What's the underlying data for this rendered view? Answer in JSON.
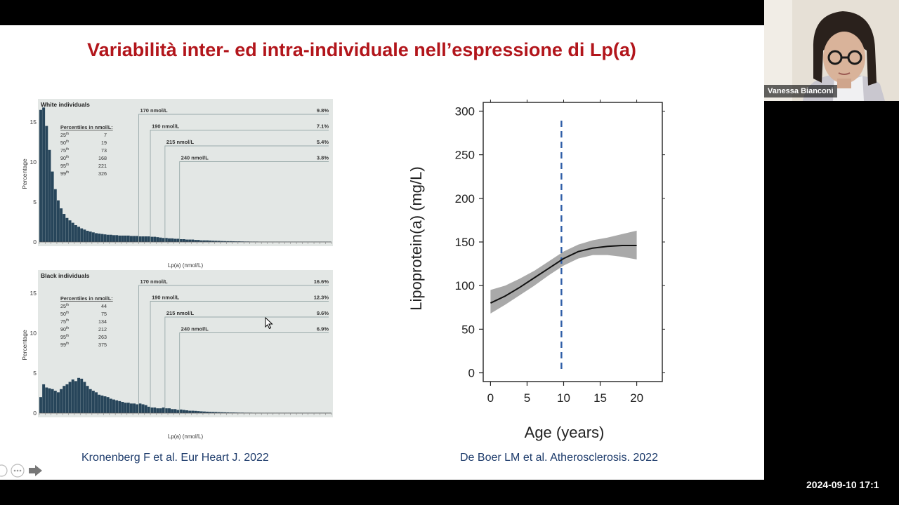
{
  "slide": {
    "title": "Variabilità inter- ed intra-individuale nell’espressione di Lp(a)",
    "citation_left": "Kronenberg F et al. Eur Heart J. 2022",
    "citation_right": "De Boer LM et al. Atherosclerosis. 2022"
  },
  "participant": {
    "name": "Vanessa Bianconi"
  },
  "timestamp": "2024-09-10 17:1",
  "colors": {
    "title": "#b2151b",
    "bars": "#27455a",
    "panel_bg": "#e3e7e5",
    "dash": "#2f5ea8",
    "band": "#9a9a9a"
  },
  "chart_data": [
    {
      "type": "bar",
      "title": "White individuals",
      "ylabel": "Percentage",
      "xlabel": "Lp(a) (nmol/L)",
      "yticks": [
        "15",
        "10",
        "5",
        "0"
      ],
      "ylim": [
        0,
        17
      ],
      "percentiles_header": "Percentiles in nmol/L:",
      "percentiles": [
        {
          "p": "25th",
          "v": "7"
        },
        {
          "p": "50th",
          "v": "19"
        },
        {
          "p": "75th",
          "v": "73"
        },
        {
          "p": "90th",
          "v": "168"
        },
        {
          "p": "95th",
          "v": "221"
        },
        {
          "p": "99th",
          "v": "326"
        }
      ],
      "thresholds": [
        {
          "label": "170 nmol/L",
          "pct": "9.8%",
          "value": 170
        },
        {
          "label": "190 nmol/L",
          "pct": "7.1%",
          "value": 190
        },
        {
          "label": "215 nmol/L",
          "pct": "5.4%",
          "value": 215
        },
        {
          "label": "240 nmol/L",
          "pct": "3.8%",
          "value": 240
        }
      ],
      "values": [
        16.5,
        16.8,
        14.5,
        11.5,
        8.8,
        6.6,
        5.2,
        4.2,
        3.5,
        3.0,
        2.7,
        2.4,
        2.1,
        1.9,
        1.7,
        1.55,
        1.4,
        1.3,
        1.2,
        1.1,
        1.05,
        1.0,
        0.95,
        0.9,
        0.9,
        0.85,
        0.85,
        0.8,
        0.8,
        0.8,
        0.8,
        0.75,
        0.75,
        0.75,
        0.7,
        0.7,
        0.7,
        0.7,
        0.65,
        0.65,
        0.6,
        0.55,
        0.5,
        0.5,
        0.45,
        0.45,
        0.4,
        0.4,
        0.35,
        0.35,
        0.3,
        0.3,
        0.3,
        0.25,
        0.25,
        0.2,
        0.2,
        0.2,
        0.18,
        0.16,
        0.15,
        0.14,
        0.12,
        0.11,
        0.1,
        0.1,
        0.09,
        0.08,
        0.08,
        0.07,
        0.06,
        0.06,
        0.05,
        0.05,
        0.05,
        0.04,
        0.04,
        0.04,
        0.03,
        0.03,
        0.03,
        0.03,
        0.02,
        0.02,
        0.02,
        0.02,
        0.02,
        0.02,
        0.01,
        0.01,
        0.01,
        0.01,
        0.01,
        0.01,
        0.01,
        0.01,
        0.01,
        0.01,
        0.01,
        0.01
      ]
    },
    {
      "type": "bar",
      "title": "Black individuals",
      "ylabel": "Percentage",
      "xlabel": "Lp(a) (nmol/L)",
      "yticks": [
        "15",
        "10",
        "5",
        "0"
      ],
      "ylim": [
        0,
        17
      ],
      "percentiles_header": "Percentiles in nmol/L:",
      "percentiles": [
        {
          "p": "25th",
          "v": "44"
        },
        {
          "p": "50th",
          "v": "75"
        },
        {
          "p": "75th",
          "v": "134"
        },
        {
          "p": "90th",
          "v": "212"
        },
        {
          "p": "95th",
          "v": "263"
        },
        {
          "p": "99th",
          "v": "375"
        }
      ],
      "thresholds": [
        {
          "label": "170 nmol/L",
          "pct": "16.6%",
          "value": 170
        },
        {
          "label": "190 nmol/L",
          "pct": "12.3%",
          "value": 190
        },
        {
          "label": "215 nmol/L",
          "pct": "9.6%",
          "value": 215
        },
        {
          "label": "240 nmol/L",
          "pct": "6.9%",
          "value": 240
        }
      ],
      "values": [
        2.0,
        3.6,
        3.2,
        3.1,
        3.0,
        2.8,
        2.6,
        3.0,
        3.4,
        3.6,
        3.9,
        4.2,
        4.0,
        4.4,
        4.3,
        3.9,
        3.4,
        3.0,
        2.8,
        2.6,
        2.3,
        2.2,
        2.1,
        2.0,
        1.8,
        1.7,
        1.6,
        1.5,
        1.4,
        1.3,
        1.3,
        1.2,
        1.2,
        1.1,
        1.2,
        1.1,
        1.0,
        0.8,
        0.7,
        0.7,
        0.6,
        0.6,
        0.7,
        0.6,
        0.6,
        0.5,
        0.5,
        0.4,
        0.45,
        0.4,
        0.35,
        0.3,
        0.3,
        0.28,
        0.25,
        0.22,
        0.2,
        0.18,
        0.16,
        0.15,
        0.14,
        0.12,
        0.11,
        0.1,
        0.09,
        0.08,
        0.08,
        0.07,
        0.06,
        0.06,
        0.05,
        0.05,
        0.05,
        0.04,
        0.04,
        0.04,
        0.03,
        0.03,
        0.03,
        0.03,
        0.02,
        0.02,
        0.02,
        0.02,
        0.02,
        0.02,
        0.02,
        0.01,
        0.01,
        0.01,
        0.01,
        0.01,
        0.01,
        0.01,
        0.01,
        0.01,
        0.01,
        0.01,
        0.01,
        0.01
      ]
    },
    {
      "type": "line",
      "xlabel": "Age (years)",
      "ylabel": "Lipoprotein(a) (mg/L)",
      "xlim": [
        -1,
        23.5
      ],
      "ylim": [
        -10,
        310
      ],
      "xticks": [
        0,
        5,
        10,
        15,
        20
      ],
      "yticks": [
        0,
        50,
        100,
        150,
        200,
        250,
        300
      ],
      "x": [
        0,
        2,
        4,
        6,
        8,
        10,
        12,
        14,
        16,
        18,
        20
      ],
      "y": [
        80,
        88,
        98,
        109,
        120,
        131,
        139,
        143,
        145,
        146,
        146
      ],
      "ci_lower": [
        68,
        78,
        89,
        100,
        112,
        123,
        131,
        135,
        135,
        133,
        130
      ],
      "ci_upper": [
        95,
        100,
        108,
        117,
        128,
        139,
        147,
        152,
        155,
        159,
        163
      ],
      "vline_x": 9.7,
      "grid": false
    }
  ]
}
